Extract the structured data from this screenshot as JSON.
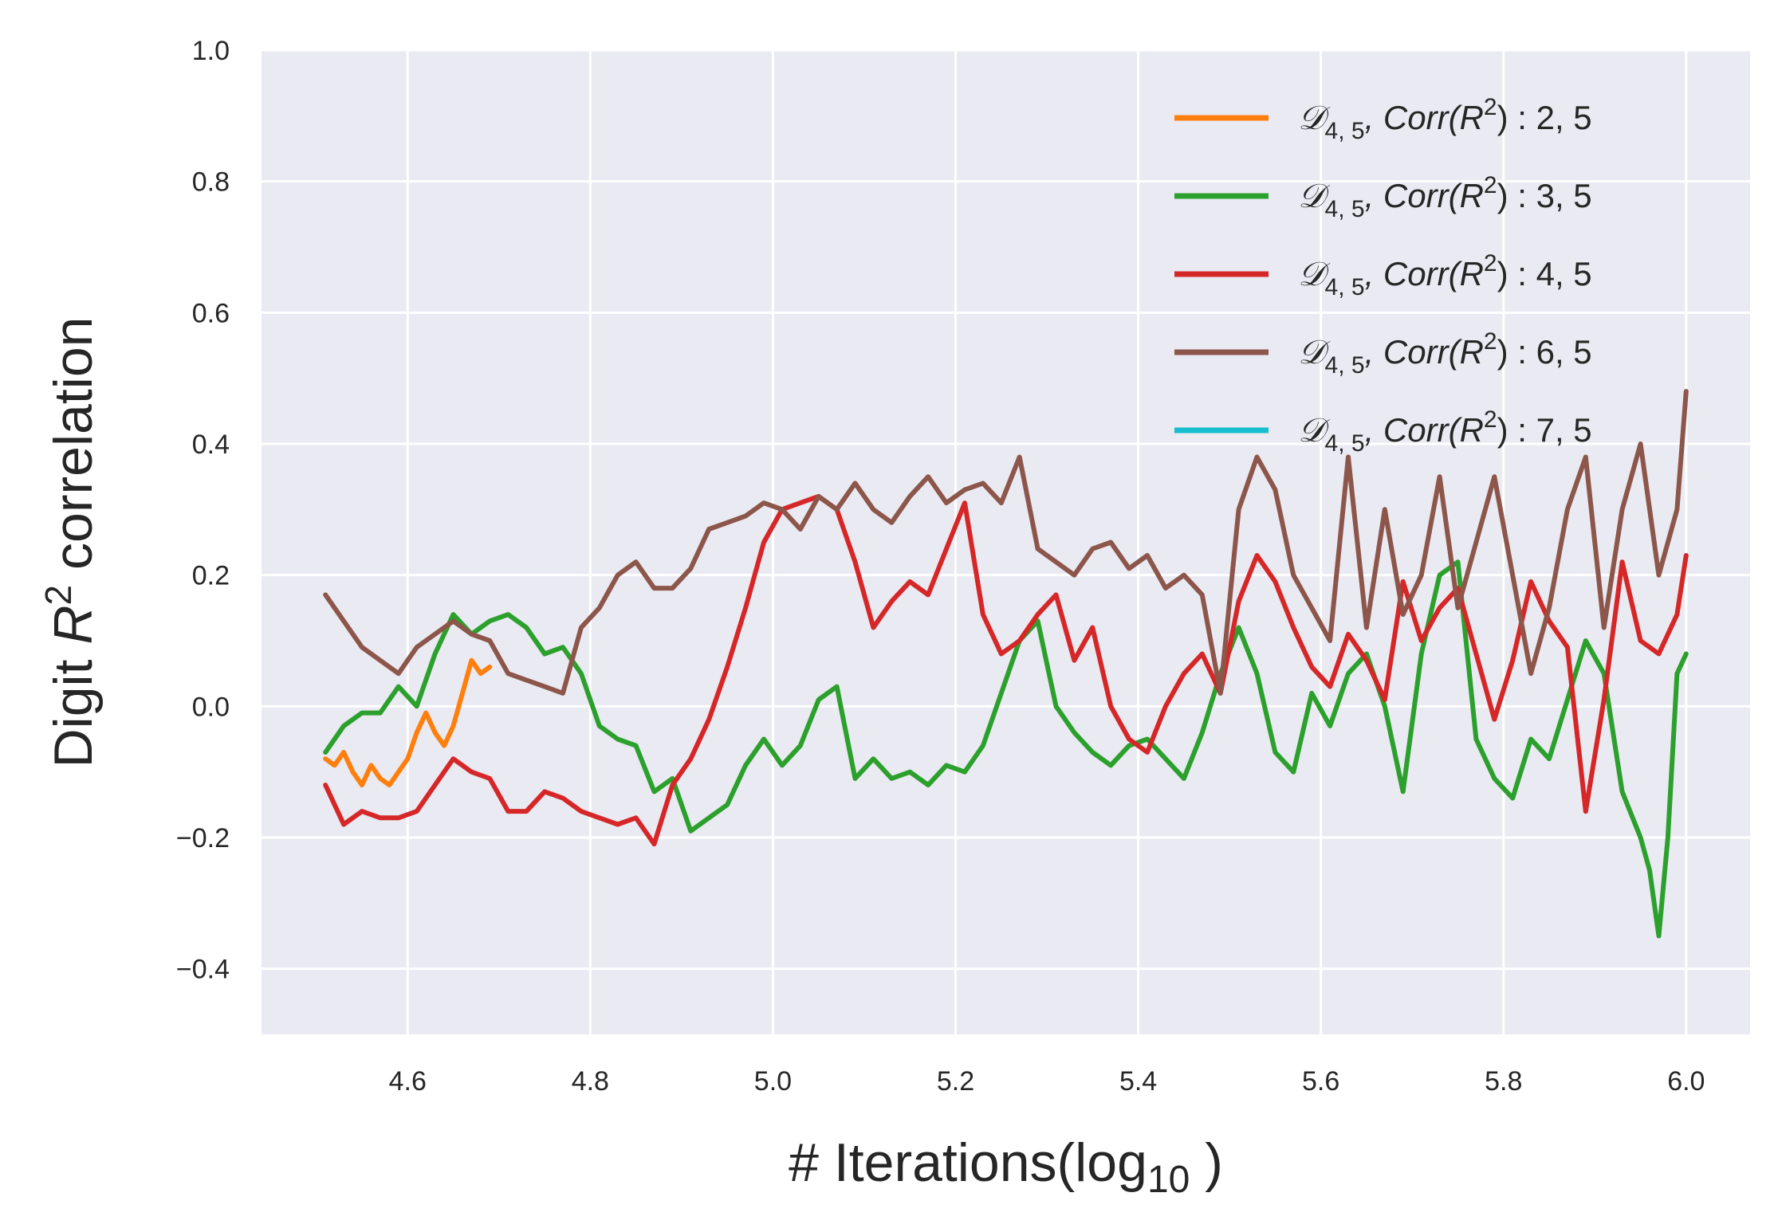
{
  "chart_data": {
    "type": "line",
    "xlabel": "# Iterations(log",
    "xlabel_sub": "10",
    "xlabel_end": " )",
    "ylabel": "Digit ",
    "ylabel_var": "R",
    "ylabel_sup": "2",
    "ylabel_end": " correlation",
    "xlim": [
      4.44,
      6.07
    ],
    "ylim": [
      -0.5,
      1.0
    ],
    "xticks": [
      4.6,
      4.8,
      5.0,
      5.2,
      5.4,
      5.6,
      5.8,
      6.0
    ],
    "xtick_labels": [
      "4.6",
      "4.8",
      "5.0",
      "5.2",
      "5.4",
      "5.6",
      "5.8",
      "6.0"
    ],
    "yticks": [
      -0.4,
      -0.2,
      0.0,
      0.2,
      0.4,
      0.6,
      0.8,
      1.0
    ],
    "ytick_labels": [
      "−0.4",
      "−0.2",
      "0.0",
      "0.2",
      "0.4",
      "0.6",
      "0.8",
      "1.0"
    ],
    "grid": true,
    "legend_position": "top-right",
    "series": [
      {
        "name": "2, 5",
        "legend_prefix": "𝒟",
        "legend_sub": "4, 5",
        "legend_mid": ", Corr(R",
        "legend_sup": "2",
        "legend_end": ") : 2, 5",
        "color": "#ff7f0e",
        "x": [
          4.51,
          4.52,
          4.53,
          4.54,
          4.55,
          4.56,
          4.57,
          4.58,
          4.59,
          4.6,
          4.61,
          4.62,
          4.63,
          4.64,
          4.65,
          4.66,
          4.67,
          4.68,
          4.69
        ],
        "y": [
          -0.08,
          -0.09,
          -0.07,
          -0.1,
          -0.12,
          -0.09,
          -0.11,
          -0.12,
          -0.1,
          -0.08,
          -0.04,
          -0.01,
          -0.04,
          -0.06,
          -0.03,
          0.02,
          0.07,
          0.05,
          0.06
        ]
      },
      {
        "name": "3, 5",
        "legend_prefix": "𝒟",
        "legend_sub": "4, 5",
        "legend_mid": ", Corr(R",
        "legend_sup": "2",
        "legend_end": ") : 3, 5",
        "color": "#2ca02c",
        "x": [
          4.51,
          4.53,
          4.55,
          4.57,
          4.59,
          4.61,
          4.63,
          4.65,
          4.67,
          4.69,
          4.71,
          4.73,
          4.75,
          4.77,
          4.79,
          4.81,
          4.83,
          4.85,
          4.87,
          4.89,
          4.91,
          4.93,
          4.95,
          4.97,
          4.99,
          5.01,
          5.03,
          5.05,
          5.07,
          5.09,
          5.11,
          5.13,
          5.15,
          5.17,
          5.19,
          5.21,
          5.23,
          5.25,
          5.27,
          5.29,
          5.31,
          5.33,
          5.35,
          5.37,
          5.39,
          5.41,
          5.43,
          5.45,
          5.47,
          5.49,
          5.51,
          5.53,
          5.55,
          5.57,
          5.59,
          5.61,
          5.63,
          5.65,
          5.67,
          5.69,
          5.71,
          5.73,
          5.75,
          5.77,
          5.79,
          5.81,
          5.83,
          5.85,
          5.87,
          5.89,
          5.91,
          5.93,
          5.95,
          5.96,
          5.97,
          5.98,
          5.99,
          6.0
        ],
        "y": [
          -0.07,
          -0.03,
          -0.01,
          -0.01,
          0.03,
          0.0,
          0.08,
          0.14,
          0.11,
          0.13,
          0.14,
          0.12,
          0.08,
          0.09,
          0.05,
          -0.03,
          -0.05,
          -0.06,
          -0.13,
          -0.11,
          -0.19,
          -0.17,
          -0.15,
          -0.09,
          -0.05,
          -0.09,
          -0.06,
          0.01,
          0.03,
          -0.11,
          -0.08,
          -0.11,
          -0.1,
          -0.12,
          -0.09,
          -0.1,
          -0.06,
          0.02,
          0.1,
          0.13,
          0.0,
          -0.04,
          -0.07,
          -0.09,
          -0.06,
          -0.05,
          -0.08,
          -0.11,
          -0.04,
          0.05,
          0.12,
          0.05,
          -0.07,
          -0.1,
          0.02,
          -0.03,
          0.05,
          0.08,
          0.0,
          -0.13,
          0.08,
          0.2,
          0.22,
          -0.05,
          -0.11,
          -0.14,
          -0.05,
          -0.08,
          0.01,
          0.1,
          0.05,
          -0.13,
          -0.2,
          -0.25,
          -0.35,
          -0.2,
          0.05,
          0.08
        ]
      },
      {
        "name": "4, 5",
        "legend_prefix": "𝒟",
        "legend_sub": "4, 5",
        "legend_mid": ", Corr(R",
        "legend_sup": "2",
        "legend_end": ") : 4, 5",
        "color": "#d62728",
        "x": [
          4.51,
          4.53,
          4.55,
          4.57,
          4.59,
          4.61,
          4.63,
          4.65,
          4.67,
          4.69,
          4.71,
          4.73,
          4.75,
          4.77,
          4.79,
          4.81,
          4.83,
          4.85,
          4.87,
          4.89,
          4.91,
          4.93,
          4.95,
          4.97,
          4.99,
          5.01,
          5.03,
          5.05,
          5.07,
          5.09,
          5.11,
          5.13,
          5.15,
          5.17,
          5.19,
          5.21,
          5.23,
          5.25,
          5.27,
          5.29,
          5.31,
          5.33,
          5.35,
          5.37,
          5.39,
          5.41,
          5.43,
          5.45,
          5.47,
          5.49,
          5.51,
          5.53,
          5.55,
          5.57,
          5.59,
          5.61,
          5.63,
          5.65,
          5.67,
          5.69,
          5.71,
          5.73,
          5.75,
          5.77,
          5.79,
          5.81,
          5.83,
          5.85,
          5.87,
          5.89,
          5.91,
          5.93,
          5.95,
          5.97,
          5.99,
          6.0
        ],
        "y": [
          -0.12,
          -0.18,
          -0.16,
          -0.17,
          -0.17,
          -0.16,
          -0.12,
          -0.08,
          -0.1,
          -0.11,
          -0.16,
          -0.16,
          -0.13,
          -0.14,
          -0.16,
          -0.17,
          -0.18,
          -0.17,
          -0.21,
          -0.12,
          -0.08,
          -0.02,
          0.06,
          0.15,
          0.25,
          0.3,
          0.31,
          0.32,
          0.3,
          0.22,
          0.12,
          0.16,
          0.19,
          0.17,
          0.24,
          0.31,
          0.14,
          0.08,
          0.1,
          0.14,
          0.17,
          0.07,
          0.12,
          0.0,
          -0.05,
          -0.07,
          0.0,
          0.05,
          0.08,
          0.02,
          0.16,
          0.23,
          0.19,
          0.12,
          0.06,
          0.03,
          0.11,
          0.07,
          0.01,
          0.19,
          0.1,
          0.15,
          0.18,
          0.08,
          -0.02,
          0.07,
          0.19,
          0.13,
          0.09,
          -0.16,
          0.01,
          0.22,
          0.1,
          0.08,
          0.14,
          0.23
        ]
      },
      {
        "name": "6, 5",
        "legend_prefix": "𝒟",
        "legend_sub": "4, 5",
        "legend_mid": ", Corr(R",
        "legend_sup": "2",
        "legend_end": ") : 6, 5",
        "color": "#8c564b",
        "x": [
          4.51,
          4.53,
          4.55,
          4.57,
          4.59,
          4.61,
          4.63,
          4.65,
          4.67,
          4.69,
          4.71,
          4.73,
          4.75,
          4.77,
          4.79,
          4.81,
          4.83,
          4.85,
          4.87,
          4.89,
          4.91,
          4.93,
          4.95,
          4.97,
          4.99,
          5.01,
          5.03,
          5.05,
          5.07,
          5.09,
          5.11,
          5.13,
          5.15,
          5.17,
          5.19,
          5.21,
          5.23,
          5.25,
          5.27,
          5.29,
          5.31,
          5.33,
          5.35,
          5.37,
          5.39,
          5.41,
          5.43,
          5.45,
          5.47,
          5.49,
          5.51,
          5.53,
          5.55,
          5.57,
          5.59,
          5.61,
          5.63,
          5.65,
          5.67,
          5.69,
          5.71,
          5.73,
          5.75,
          5.77,
          5.79,
          5.81,
          5.83,
          5.85,
          5.87,
          5.89,
          5.91,
          5.93,
          5.95,
          5.97,
          5.99,
          6.0
        ],
        "y": [
          0.17,
          0.13,
          0.09,
          0.07,
          0.05,
          0.09,
          0.11,
          0.13,
          0.11,
          0.1,
          0.05,
          0.04,
          0.03,
          0.02,
          0.12,
          0.15,
          0.2,
          0.22,
          0.18,
          0.18,
          0.21,
          0.27,
          0.28,
          0.29,
          0.31,
          0.3,
          0.27,
          0.32,
          0.3,
          0.34,
          0.3,
          0.28,
          0.32,
          0.35,
          0.31,
          0.33,
          0.34,
          0.31,
          0.38,
          0.24,
          0.22,
          0.2,
          0.24,
          0.25,
          0.21,
          0.23,
          0.18,
          0.2,
          0.17,
          0.02,
          0.3,
          0.38,
          0.33,
          0.2,
          0.15,
          0.1,
          0.38,
          0.12,
          0.3,
          0.14,
          0.2,
          0.35,
          0.15,
          0.25,
          0.35,
          0.2,
          0.05,
          0.15,
          0.3,
          0.38,
          0.12,
          0.3,
          0.4,
          0.2,
          0.3,
          0.48
        ]
      },
      {
        "name": "7, 5",
        "legend_prefix": "𝒟",
        "legend_sub": "4, 5",
        "legend_mid": ", Corr(R",
        "legend_sup": "2",
        "legend_end": ") : 7, 5",
        "color": "#17becf",
        "x": [],
        "y": []
      }
    ]
  }
}
